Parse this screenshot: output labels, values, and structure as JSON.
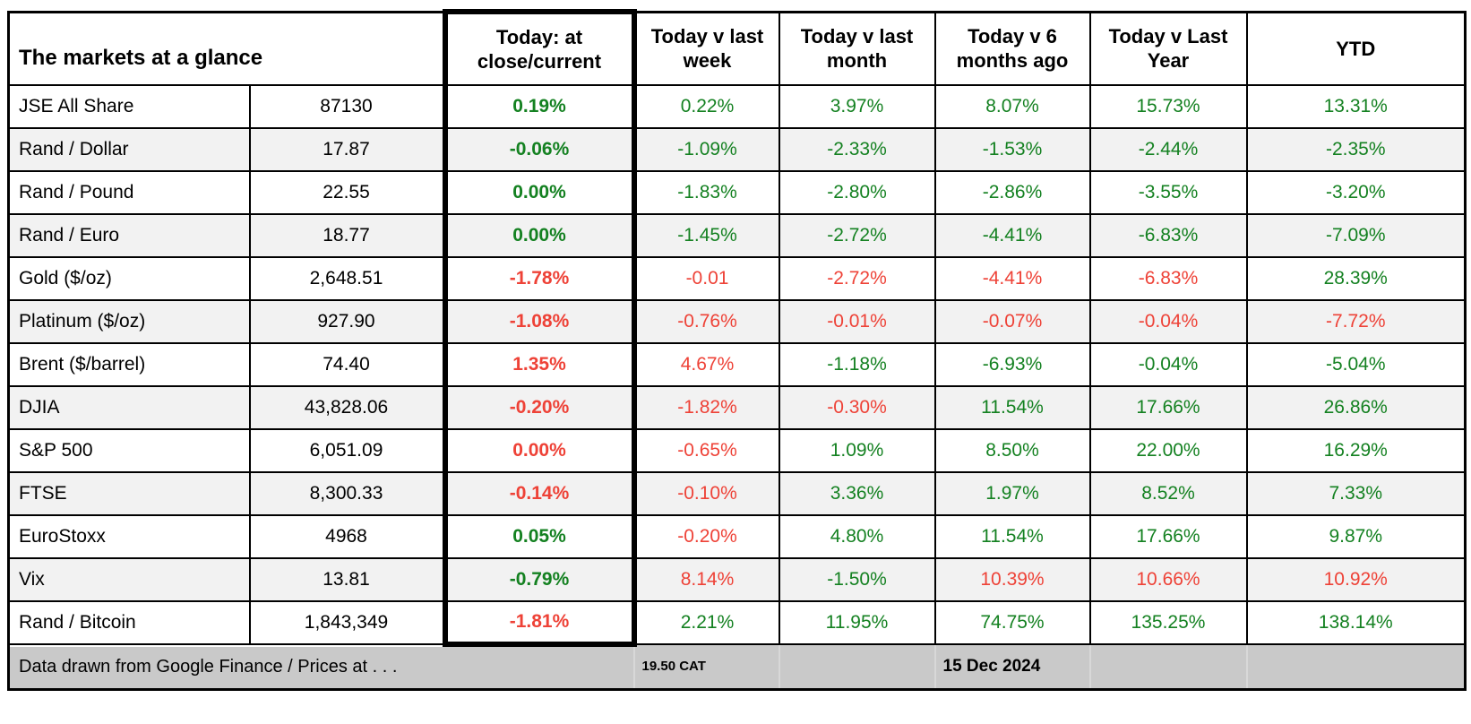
{
  "title": "The markets at a glance",
  "columns": [
    "Today: at\nclose/current",
    "Today v last\nweek",
    "Today v last\nmonth",
    "Today v 6\nmonths ago",
    "Today v Last\nYear",
    "YTD"
  ],
  "rows": [
    {
      "label": "JSE All Share",
      "value": "87130",
      "cells": [
        {
          "t": "0.19%",
          "c": "green"
        },
        {
          "t": "0.22%",
          "c": "green"
        },
        {
          "t": "3.97%",
          "c": "green"
        },
        {
          "t": "8.07%",
          "c": "green"
        },
        {
          "t": "15.73%",
          "c": "green"
        },
        {
          "t": "13.31%",
          "c": "green"
        }
      ]
    },
    {
      "label": "Rand / Dollar",
      "value": "17.87",
      "cells": [
        {
          "t": "-0.06%",
          "c": "green"
        },
        {
          "t": "-1.09%",
          "c": "green"
        },
        {
          "t": "-2.33%",
          "c": "green"
        },
        {
          "t": "-1.53%",
          "c": "green"
        },
        {
          "t": "-2.44%",
          "c": "green"
        },
        {
          "t": "-2.35%",
          "c": "green"
        }
      ]
    },
    {
      "label": "Rand / Pound",
      "value": "22.55",
      "cells": [
        {
          "t": "0.00%",
          "c": "green"
        },
        {
          "t": "-1.83%",
          "c": "green"
        },
        {
          "t": "-2.80%",
          "c": "green"
        },
        {
          "t": "-2.86%",
          "c": "green"
        },
        {
          "t": "-3.55%",
          "c": "green"
        },
        {
          "t": "-3.20%",
          "c": "green"
        }
      ]
    },
    {
      "label": "Rand / Euro",
      "value": "18.77",
      "cells": [
        {
          "t": "0.00%",
          "c": "green"
        },
        {
          "t": "-1.45%",
          "c": "green"
        },
        {
          "t": "-2.72%",
          "c": "green"
        },
        {
          "t": "-4.41%",
          "c": "green"
        },
        {
          "t": "-6.83%",
          "c": "green"
        },
        {
          "t": "-7.09%",
          "c": "green"
        }
      ]
    },
    {
      "label": "Gold ($/oz)",
      "value": "2,648.51",
      "cells": [
        {
          "t": "-1.78%",
          "c": "red"
        },
        {
          "t": "-0.01",
          "c": "red"
        },
        {
          "t": "-2.72%",
          "c": "red"
        },
        {
          "t": "-4.41%",
          "c": "red"
        },
        {
          "t": "-6.83%",
          "c": "red"
        },
        {
          "t": "28.39%",
          "c": "green"
        }
      ]
    },
    {
      "label": "Platinum ($/oz)",
      "value": "927.90",
      "cells": [
        {
          "t": "-1.08%",
          "c": "red"
        },
        {
          "t": "-0.76%",
          "c": "red"
        },
        {
          "t": "-0.01%",
          "c": "red"
        },
        {
          "t": "-0.07%",
          "c": "red"
        },
        {
          "t": "-0.04%",
          "c": "red"
        },
        {
          "t": "-7.72%",
          "c": "red"
        }
      ]
    },
    {
      "label": "Brent ($/barrel)",
      "value": "74.40",
      "cells": [
        {
          "t": "1.35%",
          "c": "red"
        },
        {
          "t": "4.67%",
          "c": "red"
        },
        {
          "t": "-1.18%",
          "c": "green"
        },
        {
          "t": "-6.93%",
          "c": "green"
        },
        {
          "t": "-0.04%",
          "c": "green"
        },
        {
          "t": "-5.04%",
          "c": "green"
        }
      ]
    },
    {
      "label": "DJIA",
      "value": "43,828.06",
      "cells": [
        {
          "t": "-0.20%",
          "c": "red"
        },
        {
          "t": "-1.82%",
          "c": "red"
        },
        {
          "t": "-0.30%",
          "c": "red"
        },
        {
          "t": "11.54%",
          "c": "green"
        },
        {
          "t": "17.66%",
          "c": "green"
        },
        {
          "t": "26.86%",
          "c": "green"
        }
      ]
    },
    {
      "label": "S&P 500",
      "value": "6,051.09",
      "cells": [
        {
          "t": "0.00%",
          "c": "red"
        },
        {
          "t": "-0.65%",
          "c": "red"
        },
        {
          "t": "1.09%",
          "c": "green"
        },
        {
          "t": "8.50%",
          "c": "green"
        },
        {
          "t": "22.00%",
          "c": "green"
        },
        {
          "t": "16.29%",
          "c": "green"
        }
      ]
    },
    {
      "label": "FTSE",
      "value": "8,300.33",
      "cells": [
        {
          "t": "-0.14%",
          "c": "red"
        },
        {
          "t": "-0.10%",
          "c": "red"
        },
        {
          "t": "3.36%",
          "c": "green"
        },
        {
          "t": "1.97%",
          "c": "green"
        },
        {
          "t": "8.52%",
          "c": "green"
        },
        {
          "t": "7.33%",
          "c": "green"
        }
      ]
    },
    {
      "label": "EuroStoxx",
      "value": "4968",
      "cells": [
        {
          "t": "0.05%",
          "c": "green"
        },
        {
          "t": "-0.20%",
          "c": "red"
        },
        {
          "t": "4.80%",
          "c": "green"
        },
        {
          "t": "11.54%",
          "c": "green"
        },
        {
          "t": "17.66%",
          "c": "green"
        },
        {
          "t": "9.87%",
          "c": "green"
        }
      ]
    },
    {
      "label": "Vix",
      "value": "13.81",
      "cells": [
        {
          "t": "-0.79%",
          "c": "green"
        },
        {
          "t": "8.14%",
          "c": "red"
        },
        {
          "t": "-1.50%",
          "c": "green"
        },
        {
          "t": "10.39%",
          "c": "red"
        },
        {
          "t": "10.66%",
          "c": "red"
        },
        {
          "t": "10.92%",
          "c": "red"
        }
      ]
    },
    {
      "label": "Rand / Bitcoin",
      "value": "1,843,349",
      "cells": [
        {
          "t": "-1.81%",
          "c": "red"
        },
        {
          "t": "2.21%",
          "c": "green"
        },
        {
          "t": "11.95%",
          "c": "green"
        },
        {
          "t": "74.75%",
          "c": "green"
        },
        {
          "t": "135.25%",
          "c": "green"
        },
        {
          "t": "138.14%",
          "c": "green"
        }
      ]
    }
  ],
  "footer": {
    "note": "Data drawn from Google Finance / Prices at . . .",
    "time": "19.50 CAT",
    "date": "15 Dec 2024"
  },
  "colors": {
    "positive_green": "#148121",
    "negative_red": "#ee4237",
    "row_stripe": "#f2f2f2",
    "footer_gray": "#c9c9c9",
    "border_black": "#000000"
  }
}
